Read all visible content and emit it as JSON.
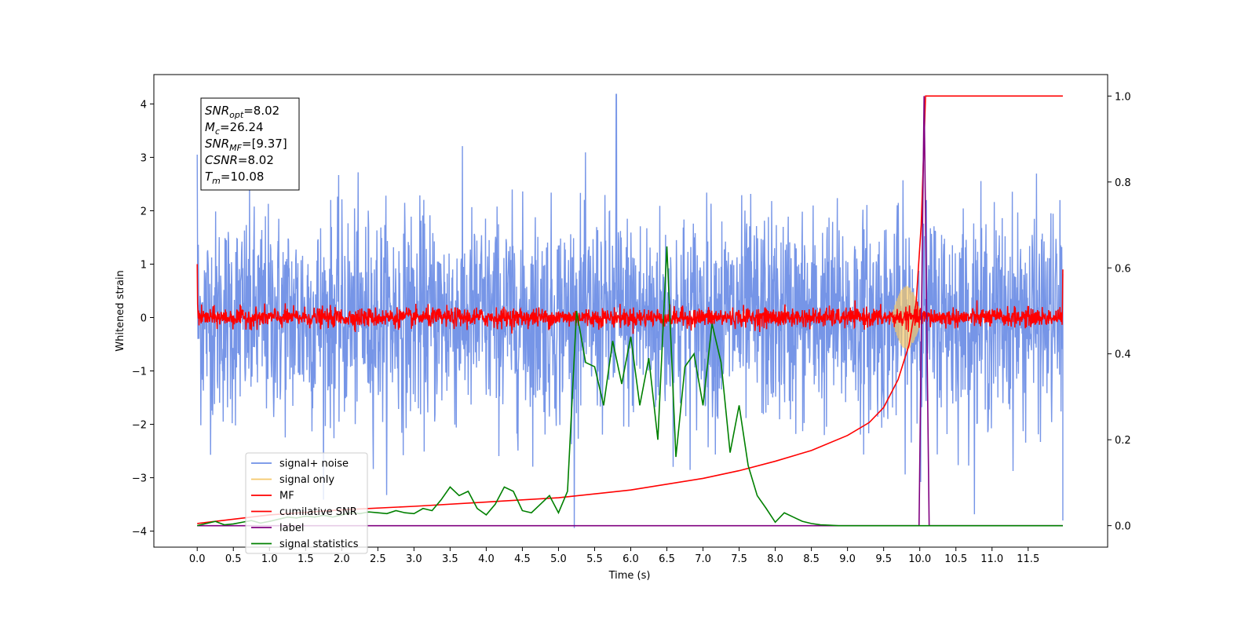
{
  "chart_data": {
    "type": "line",
    "xlabel": "Time (s)",
    "ylabel": "Whitened strain",
    "xlim": [
      -0.6,
      12.6
    ],
    "ylim_left": [
      -4.3,
      4.55
    ],
    "ylim_right": [
      -0.05,
      1.05
    ],
    "x_ticks": [
      "0.0",
      "0.5",
      "1.0",
      "1.5",
      "2.0",
      "2.5",
      "3.0",
      "3.5",
      "4.0",
      "4.5",
      "5.0",
      "5.5",
      "6.0",
      "6.5",
      "7.0",
      "7.5",
      "8.0",
      "8.5",
      "9.0",
      "9.5",
      "10.0",
      "10.5",
      "11.0",
      "11.5"
    ],
    "y_left_ticks": [
      "4",
      "3",
      "2",
      "1",
      "0",
      "−1",
      "−2",
      "−3",
      "−4"
    ],
    "y_right_ticks": [
      "1.0",
      "0.8",
      "0.6",
      "0.4",
      "0.2",
      "0.0"
    ],
    "grid": false,
    "legend_position": "lower left",
    "annotation": {
      "lines": [
        {
          "sym": "SNR",
          "sub": "opt",
          "val": "=8.02"
        },
        {
          "sym": "M",
          "sub": "c",
          "val": "=26.24"
        },
        {
          "sym": "SNR",
          "sub": "MF",
          "val": "=[9.37]"
        },
        {
          "sym": "CSNR",
          "sub": "",
          "val": "=8.02"
        },
        {
          "sym": "T",
          "sub": "m",
          "val": "=10.08"
        }
      ]
    },
    "series": [
      {
        "name": "signal+ noise",
        "color": "#6f8fe6",
        "axis": "left",
        "description_level": "gaussian noise, std approx 1.0, range approx -3.9 to 4.2",
        "peak_value": 4.18,
        "peak_x": 5.8
      },
      {
        "name": "signal only",
        "color": "#f5c96a",
        "axis": "left",
        "chirp_start": 9.6,
        "chirp_end": 10.1,
        "peak_amplitude": 0.6
      },
      {
        "name": "MF",
        "color": "#ff0000",
        "axis": "left",
        "baseline": 0.0,
        "noise_std": 0.09,
        "start_value": 1.0,
        "end_value": 0.9
      },
      {
        "name": "cumilative SNR",
        "color": "#ff0000",
        "axis": "right",
        "x": [
          0.0,
          1.0,
          2.0,
          3.0,
          4.0,
          5.0,
          6.0,
          7.0,
          7.5,
          8.0,
          8.5,
          9.0,
          9.3,
          9.5,
          9.7,
          9.85,
          9.95,
          10.02,
          10.06,
          10.08,
          11.5,
          11.98
        ],
        "y": [
          0.005,
          0.025,
          0.037,
          0.045,
          0.055,
          0.065,
          0.083,
          0.11,
          0.128,
          0.15,
          0.175,
          0.21,
          0.24,
          0.275,
          0.34,
          0.42,
          0.52,
          0.7,
          0.9,
          1.0,
          1.0,
          1.0
        ]
      },
      {
        "name": "label",
        "color": "#800080",
        "axis": "right",
        "x": [
          0.0,
          9.99,
          10.06,
          10.13,
          11.98
        ],
        "y": [
          0.0,
          0.0,
          1.0,
          0.0,
          0.0
        ]
      },
      {
        "name": "signal statistics",
        "color": "#008000",
        "axis": "right",
        "x": [
          0.0,
          0.125,
          0.25,
          0.375,
          0.5,
          0.625,
          0.75,
          0.875,
          1.0,
          1.125,
          1.25,
          1.375,
          1.5,
          1.625,
          1.75,
          1.875,
          2.0,
          2.125,
          2.25,
          2.375,
          2.5,
          2.625,
          2.75,
          2.875,
          3.0,
          3.125,
          3.25,
          3.375,
          3.5,
          3.625,
          3.75,
          3.875,
          4.0,
          4.125,
          4.25,
          4.375,
          4.5,
          4.625,
          4.75,
          4.875,
          5.0,
          5.125,
          5.25,
          5.375,
          5.5,
          5.625,
          5.75,
          5.875,
          6.0,
          6.125,
          6.25,
          6.375,
          6.5,
          6.625,
          6.75,
          6.875,
          7.0,
          7.125,
          7.25,
          7.375,
          7.5,
          7.625,
          7.75,
          7.875,
          8.0,
          8.125,
          8.25,
          8.375,
          8.5,
          8.625,
          8.75,
          8.875,
          9.0,
          9.25,
          9.5,
          9.75,
          10.0,
          10.5,
          11.0,
          11.5,
          11.98
        ],
        "y": [
          0.0,
          0.005,
          0.01,
          0.002,
          0.004,
          0.008,
          0.012,
          0.006,
          0.01,
          0.015,
          0.02,
          0.018,
          0.022,
          0.02,
          0.024,
          0.02,
          0.025,
          0.03,
          0.028,
          0.032,
          0.03,
          0.028,
          0.035,
          0.03,
          0.028,
          0.04,
          0.035,
          0.06,
          0.09,
          0.07,
          0.08,
          0.04,
          0.025,
          0.05,
          0.09,
          0.08,
          0.035,
          0.03,
          0.05,
          0.07,
          0.03,
          0.08,
          0.5,
          0.38,
          0.37,
          0.28,
          0.43,
          0.33,
          0.44,
          0.28,
          0.39,
          0.2,
          0.65,
          0.16,
          0.37,
          0.4,
          0.28,
          0.47,
          0.38,
          0.17,
          0.28,
          0.14,
          0.07,
          0.04,
          0.008,
          0.03,
          0.02,
          0.01,
          0.005,
          0.002,
          0.001,
          0.0,
          0.0,
          0.0,
          0.0,
          0.0,
          0.0,
          0.0,
          0.0,
          0.0,
          0.0
        ]
      }
    ]
  },
  "legend": {
    "items": [
      {
        "label": "signal+ noise",
        "color": "#6f8fe6"
      },
      {
        "label": "signal only",
        "color": "#f5c96a"
      },
      {
        "label": "MF",
        "color": "#ff0000"
      },
      {
        "label": "cumilative SNR",
        "color": "#ff0000"
      },
      {
        "label": "label",
        "color": "#800080"
      },
      {
        "label": "signal statistics",
        "color": "#008000"
      }
    ]
  }
}
